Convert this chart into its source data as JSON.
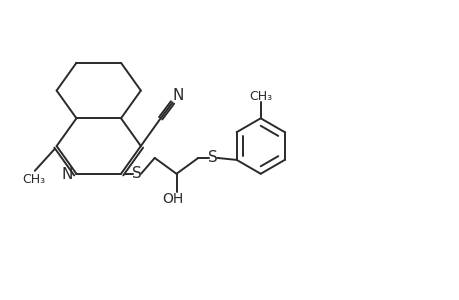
{
  "bg_color": "#ffffff",
  "line_color": "#2a2a2a",
  "line_width": 1.4,
  "font_size": 10,
  "figsize": [
    4.6,
    3.0
  ],
  "dpi": 100,
  "xlim": [
    0,
    46
  ],
  "ylim": [
    0,
    30
  ]
}
